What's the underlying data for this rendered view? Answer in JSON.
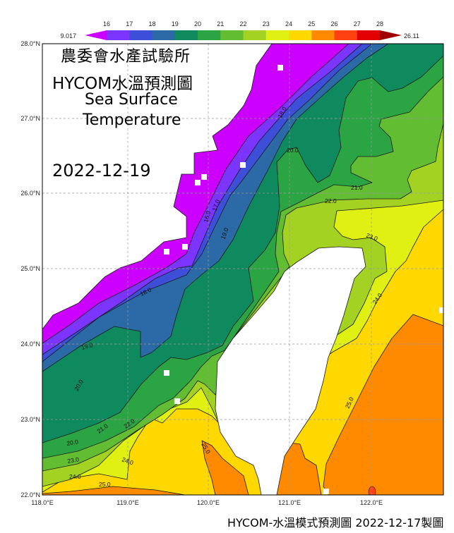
{
  "title": {
    "org": "農委會水產試驗所",
    "product": "HYCOM水溫預測圖",
    "line3": "Sea Surface",
    "line4": "Temperature",
    "date": "2022-12-19"
  },
  "footer": "HYCOM-水溫模式預測圖 2022-12-17製圖",
  "colorbar": {
    "min_label": "9.017",
    "max_label": "26.11",
    "ticks": [
      "16",
      "17",
      "18",
      "19",
      "20",
      "21",
      "22",
      "23",
      "24",
      "25",
      "26",
      "27",
      "28"
    ],
    "below_color": "#cc00ff",
    "above_color": "#a00000",
    "colors": [
      "#7b35ff",
      "#3d4ed8",
      "#2b6aa6",
      "#0f8a5f",
      "#2ba544",
      "#63bd33",
      "#a3d222",
      "#dff012",
      "#ffd800",
      "#ff8a00",
      "#ff4010",
      "#e20000"
    ]
  },
  "axes": {
    "lat_labels": [
      "28.0°N",
      "27.0°N",
      "26.0°N",
      "25.0°N",
      "24.0°N",
      "23.0°N",
      "22.0°N"
    ],
    "lon_labels": [
      "118.0°E",
      "119.0°E",
      "120.0°E",
      "121.0°E",
      "122.0°E"
    ]
  },
  "contour_labels": [
    "18.0",
    "20.0",
    "21.0",
    "22.0",
    "23.0",
    "16.0",
    "17.0",
    "19.0",
    "18.0",
    "19.0",
    "20.0",
    "21.0",
    "22.0",
    "20.0",
    "23.0",
    "24.0",
    "24.0",
    "25.0",
    "25.0",
    "24.0",
    "25.0"
  ],
  "zones": {
    "lt16": "#cc00ff",
    "t16": "#7b35ff",
    "t17": "#3d4ed8",
    "t18": "#2b6aa6",
    "t19": "#0f8a5f",
    "t20": "#2ba544",
    "t21": "#63bd33",
    "t22": "#a3d222",
    "t23": "#dff012",
    "t24": "#ffd800",
    "t25": "#ff8a00",
    "t26": "#ff4010",
    "land": "#ffffff"
  }
}
